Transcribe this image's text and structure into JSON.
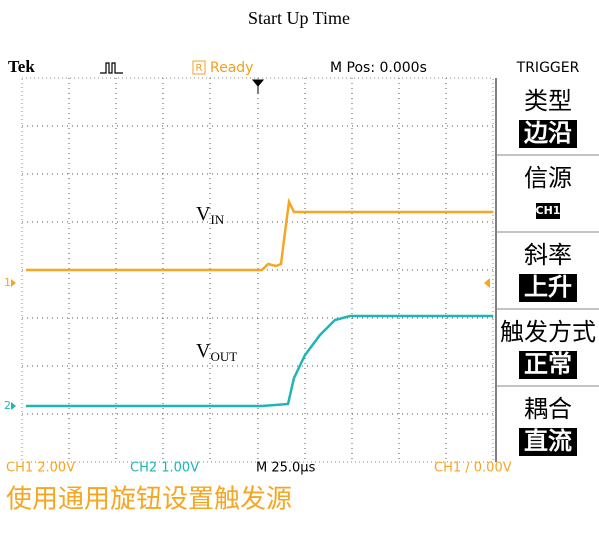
{
  "title": "Start Up Time",
  "status_bar": {
    "brand": "Tek",
    "run_state_icon": "R",
    "run_state": "Ready",
    "position": "M Pos: 0.000s",
    "menu_title": "TRIGGER"
  },
  "labels": {
    "vin": {
      "main": "V",
      "sub": "IN"
    },
    "vout": {
      "main": "V",
      "sub": "OUT"
    },
    "ch1_marker": "1",
    "ch2_marker": "2"
  },
  "menu": [
    {
      "label": "类型",
      "value": "边沿"
    },
    {
      "label": "信源",
      "value": "CH1"
    },
    {
      "label": "斜率",
      "value": "上升"
    },
    {
      "label": "触发方式",
      "value": "正常"
    },
    {
      "label": "耦合",
      "value": "直流"
    }
  ],
  "readouts": {
    "ch1": "CH1  2.00V",
    "ch2": "CH2  1.00V",
    "timebase": "M 25.0µs",
    "trigger": "CH1 ∕ 0.00V"
  },
  "message": "使用通用旋钮设置触发源"
}
